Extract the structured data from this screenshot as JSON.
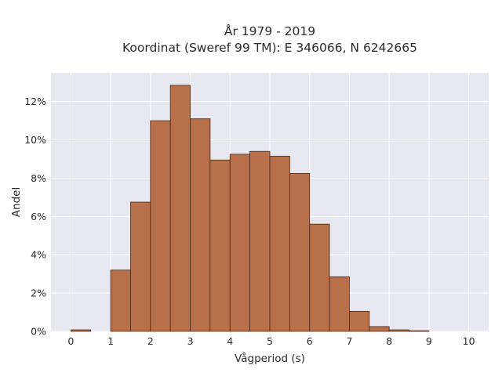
{
  "chart_data": {
    "type": "bar",
    "title": [
      "År 1979 - 2019",
      "Koordinat (Sweref 99 TM): E 346066, N 6242665"
    ],
    "xlabel": "Vågperiod (s)",
    "ylabel": "Andel",
    "bin_width": 0.5,
    "bin_starts": [
      0,
      0.5,
      1,
      1.5,
      2,
      2.5,
      3,
      3.5,
      4,
      4.5,
      5,
      5.5,
      6,
      6.5,
      7,
      7.5,
      8,
      8.5,
      9,
      9.5
    ],
    "values": [
      0.08,
      0,
      3.2,
      6.75,
      11.0,
      12.85,
      11.1,
      8.95,
      9.25,
      9.4,
      9.15,
      8.25,
      5.6,
      2.85,
      1.05,
      0.25,
      0.08,
      0.03,
      0,
      0
    ],
    "x_ticks": [
      "0",
      "1",
      "2",
      "3",
      "4",
      "5",
      "6",
      "7",
      "8",
      "9",
      "10"
    ],
    "y_ticks": [
      "0%",
      "2%",
      "4%",
      "6%",
      "8%",
      "10%",
      "12%"
    ],
    "xlim": [
      -0.5,
      10.5
    ],
    "ylim": [
      0,
      13.5
    ],
    "grid": true,
    "colors": {
      "bar_fill": "#b8704a",
      "bar_edge": "#4a2a1a",
      "plot_background": "#e8e8f0",
      "grid": "#ffffff"
    }
  }
}
